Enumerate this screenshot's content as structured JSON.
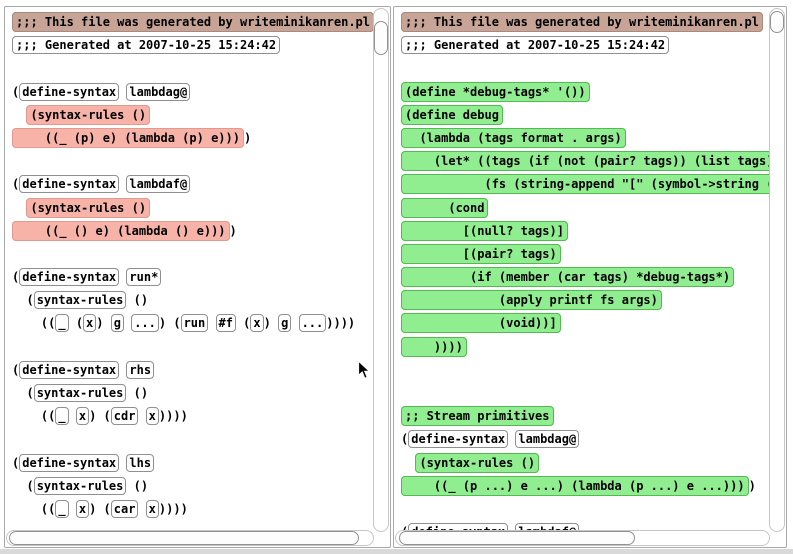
{
  "colors": {
    "tan_fill": "#c7a496",
    "tan_border": "#a68a7d",
    "pink_fill": "#f8b3a9",
    "pink_border": "#e19a8f",
    "green_fill": "#90ee90",
    "green_border": "#54b854",
    "box_border": "#8f8f8f",
    "pane_border": "#a9a9a9",
    "window_bg": "#ffffff",
    "bottom_strip": "#d9d9d9"
  },
  "left_pane": {
    "lines": [
      [
        [
          "tan",
          ";;; This file was generated by writeminikanren.pl"
        ]
      ],
      [
        [
          "wbox",
          ";;; Generated at 2007-10-25 15:24:42"
        ]
      ],
      [],
      [
        [
          "text",
          "("
        ],
        [
          "tok",
          "define-syntax"
        ],
        [
          "text",
          " "
        ],
        [
          "tok",
          "lambdag@"
        ]
      ],
      [
        [
          "text",
          "  "
        ],
        [
          "pink",
          "(syntax-rules ()"
        ]
      ],
      [
        [
          "pink",
          "    ((_ (p) e) (lambda (p) e)))"
        ],
        [
          "text",
          ")"
        ]
      ],
      [],
      [
        [
          "text",
          "("
        ],
        [
          "tok",
          "define-syntax"
        ],
        [
          "text",
          " "
        ],
        [
          "tok",
          "lambdaf@"
        ]
      ],
      [
        [
          "text",
          "  "
        ],
        [
          "pink",
          "(syntax-rules ()"
        ]
      ],
      [
        [
          "pink",
          "    ((_ () e) (lambda () e)))"
        ],
        [
          "text",
          ")"
        ]
      ],
      [],
      [
        [
          "text",
          "("
        ],
        [
          "tok",
          "define-syntax"
        ],
        [
          "text",
          " "
        ],
        [
          "tok",
          "run*"
        ]
      ],
      [
        [
          "text",
          "  ("
        ],
        [
          "tok",
          "syntax-rules"
        ],
        [
          "text",
          " ()"
        ]
      ],
      [
        [
          "text",
          "    (("
        ],
        [
          "tok",
          "_"
        ],
        [
          "text",
          " ("
        ],
        [
          "tok",
          "x"
        ],
        [
          "text",
          ") "
        ],
        [
          "tok",
          "g"
        ],
        [
          "text",
          " "
        ],
        [
          "tok",
          "..."
        ],
        [
          "text",
          ") ("
        ],
        [
          "tok",
          "run"
        ],
        [
          "text",
          " "
        ],
        [
          "tok",
          "#f"
        ],
        [
          "text",
          " ("
        ],
        [
          "tok",
          "x"
        ],
        [
          "text",
          ") "
        ],
        [
          "tok",
          "g"
        ],
        [
          "text",
          " "
        ],
        [
          "tok",
          "..."
        ],
        [
          "text",
          "))))"
        ]
      ],
      [],
      [
        [
          "text",
          "("
        ],
        [
          "tok",
          "define-syntax"
        ],
        [
          "text",
          " "
        ],
        [
          "tok",
          "rhs"
        ]
      ],
      [
        [
          "text",
          "  ("
        ],
        [
          "tok",
          "syntax-rules"
        ],
        [
          "text",
          " ()"
        ]
      ],
      [
        [
          "text",
          "    (("
        ],
        [
          "tok",
          "_"
        ],
        [
          "text",
          " "
        ],
        [
          "tok",
          "x"
        ],
        [
          "text",
          ") ("
        ],
        [
          "tok",
          "cdr"
        ],
        [
          "text",
          " "
        ],
        [
          "tok",
          "x"
        ],
        [
          "text",
          "))))"
        ]
      ],
      [],
      [
        [
          "text",
          "("
        ],
        [
          "tok",
          "define-syntax"
        ],
        [
          "text",
          " "
        ],
        [
          "tok",
          "lhs"
        ]
      ],
      [
        [
          "text",
          "  ("
        ],
        [
          "tok",
          "syntax-rules"
        ],
        [
          "text",
          " ()"
        ]
      ],
      [
        [
          "text",
          "    (("
        ],
        [
          "tok",
          "_"
        ],
        [
          "text",
          " "
        ],
        [
          "tok",
          "x"
        ],
        [
          "text",
          ") ("
        ],
        [
          "tok",
          "car"
        ],
        [
          "text",
          " "
        ],
        [
          "tok",
          "x"
        ],
        [
          "text",
          "))))"
        ]
      ]
    ]
  },
  "right_pane": {
    "lines": [
      [
        [
          "tan",
          ";;; This file was generated by writeminikanren.pl"
        ]
      ],
      [
        [
          "wbox",
          ";;; Generated at 2007-10-25 15:24:42"
        ]
      ],
      [],
      [
        [
          "green",
          "(define *debug-tags* '())"
        ]
      ],
      [
        [
          "green",
          "(define debug"
        ]
      ],
      [
        [
          "green",
          "  (lambda (tags format . args)"
        ]
      ],
      [
        [
          "green",
          "    (let* ((tags (if (not (pair? tags)) (list tags) ta"
        ]
      ],
      [
        [
          "green",
          "           (fs (string-append \"[\" (symbol->string (ca"
        ]
      ],
      [
        [
          "green",
          "      (cond"
        ]
      ],
      [
        [
          "green",
          "        [(null? tags)]"
        ]
      ],
      [
        [
          "green",
          "        [(pair? tags)"
        ]
      ],
      [
        [
          "green",
          "         (if (member (car tags) *debug-tags*)"
        ]
      ],
      [
        [
          "green",
          "             (apply printf fs args)"
        ]
      ],
      [
        [
          "green",
          "             (void))]"
        ]
      ],
      [
        [
          "green",
          "    ))))"
        ]
      ],
      [],
      [],
      [
        [
          "green",
          ";; Stream primitives"
        ]
      ],
      [
        [
          "text",
          "("
        ],
        [
          "tok",
          "define-syntax"
        ],
        [
          "text",
          " "
        ],
        [
          "tok",
          "lambdag@"
        ]
      ],
      [
        [
          "text",
          "  "
        ],
        [
          "green",
          "(syntax-rules ()"
        ]
      ],
      [
        [
          "green",
          "    ((_ (p ...) e ...) (lambda (p ...) e ...)))"
        ],
        [
          "text",
          ")"
        ]
      ],
      [],
      [
        [
          "text",
          "("
        ],
        [
          "tok",
          "define-syntax"
        ],
        [
          "text",
          " "
        ],
        [
          "tok",
          "lambdaf@"
        ]
      ]
    ]
  }
}
